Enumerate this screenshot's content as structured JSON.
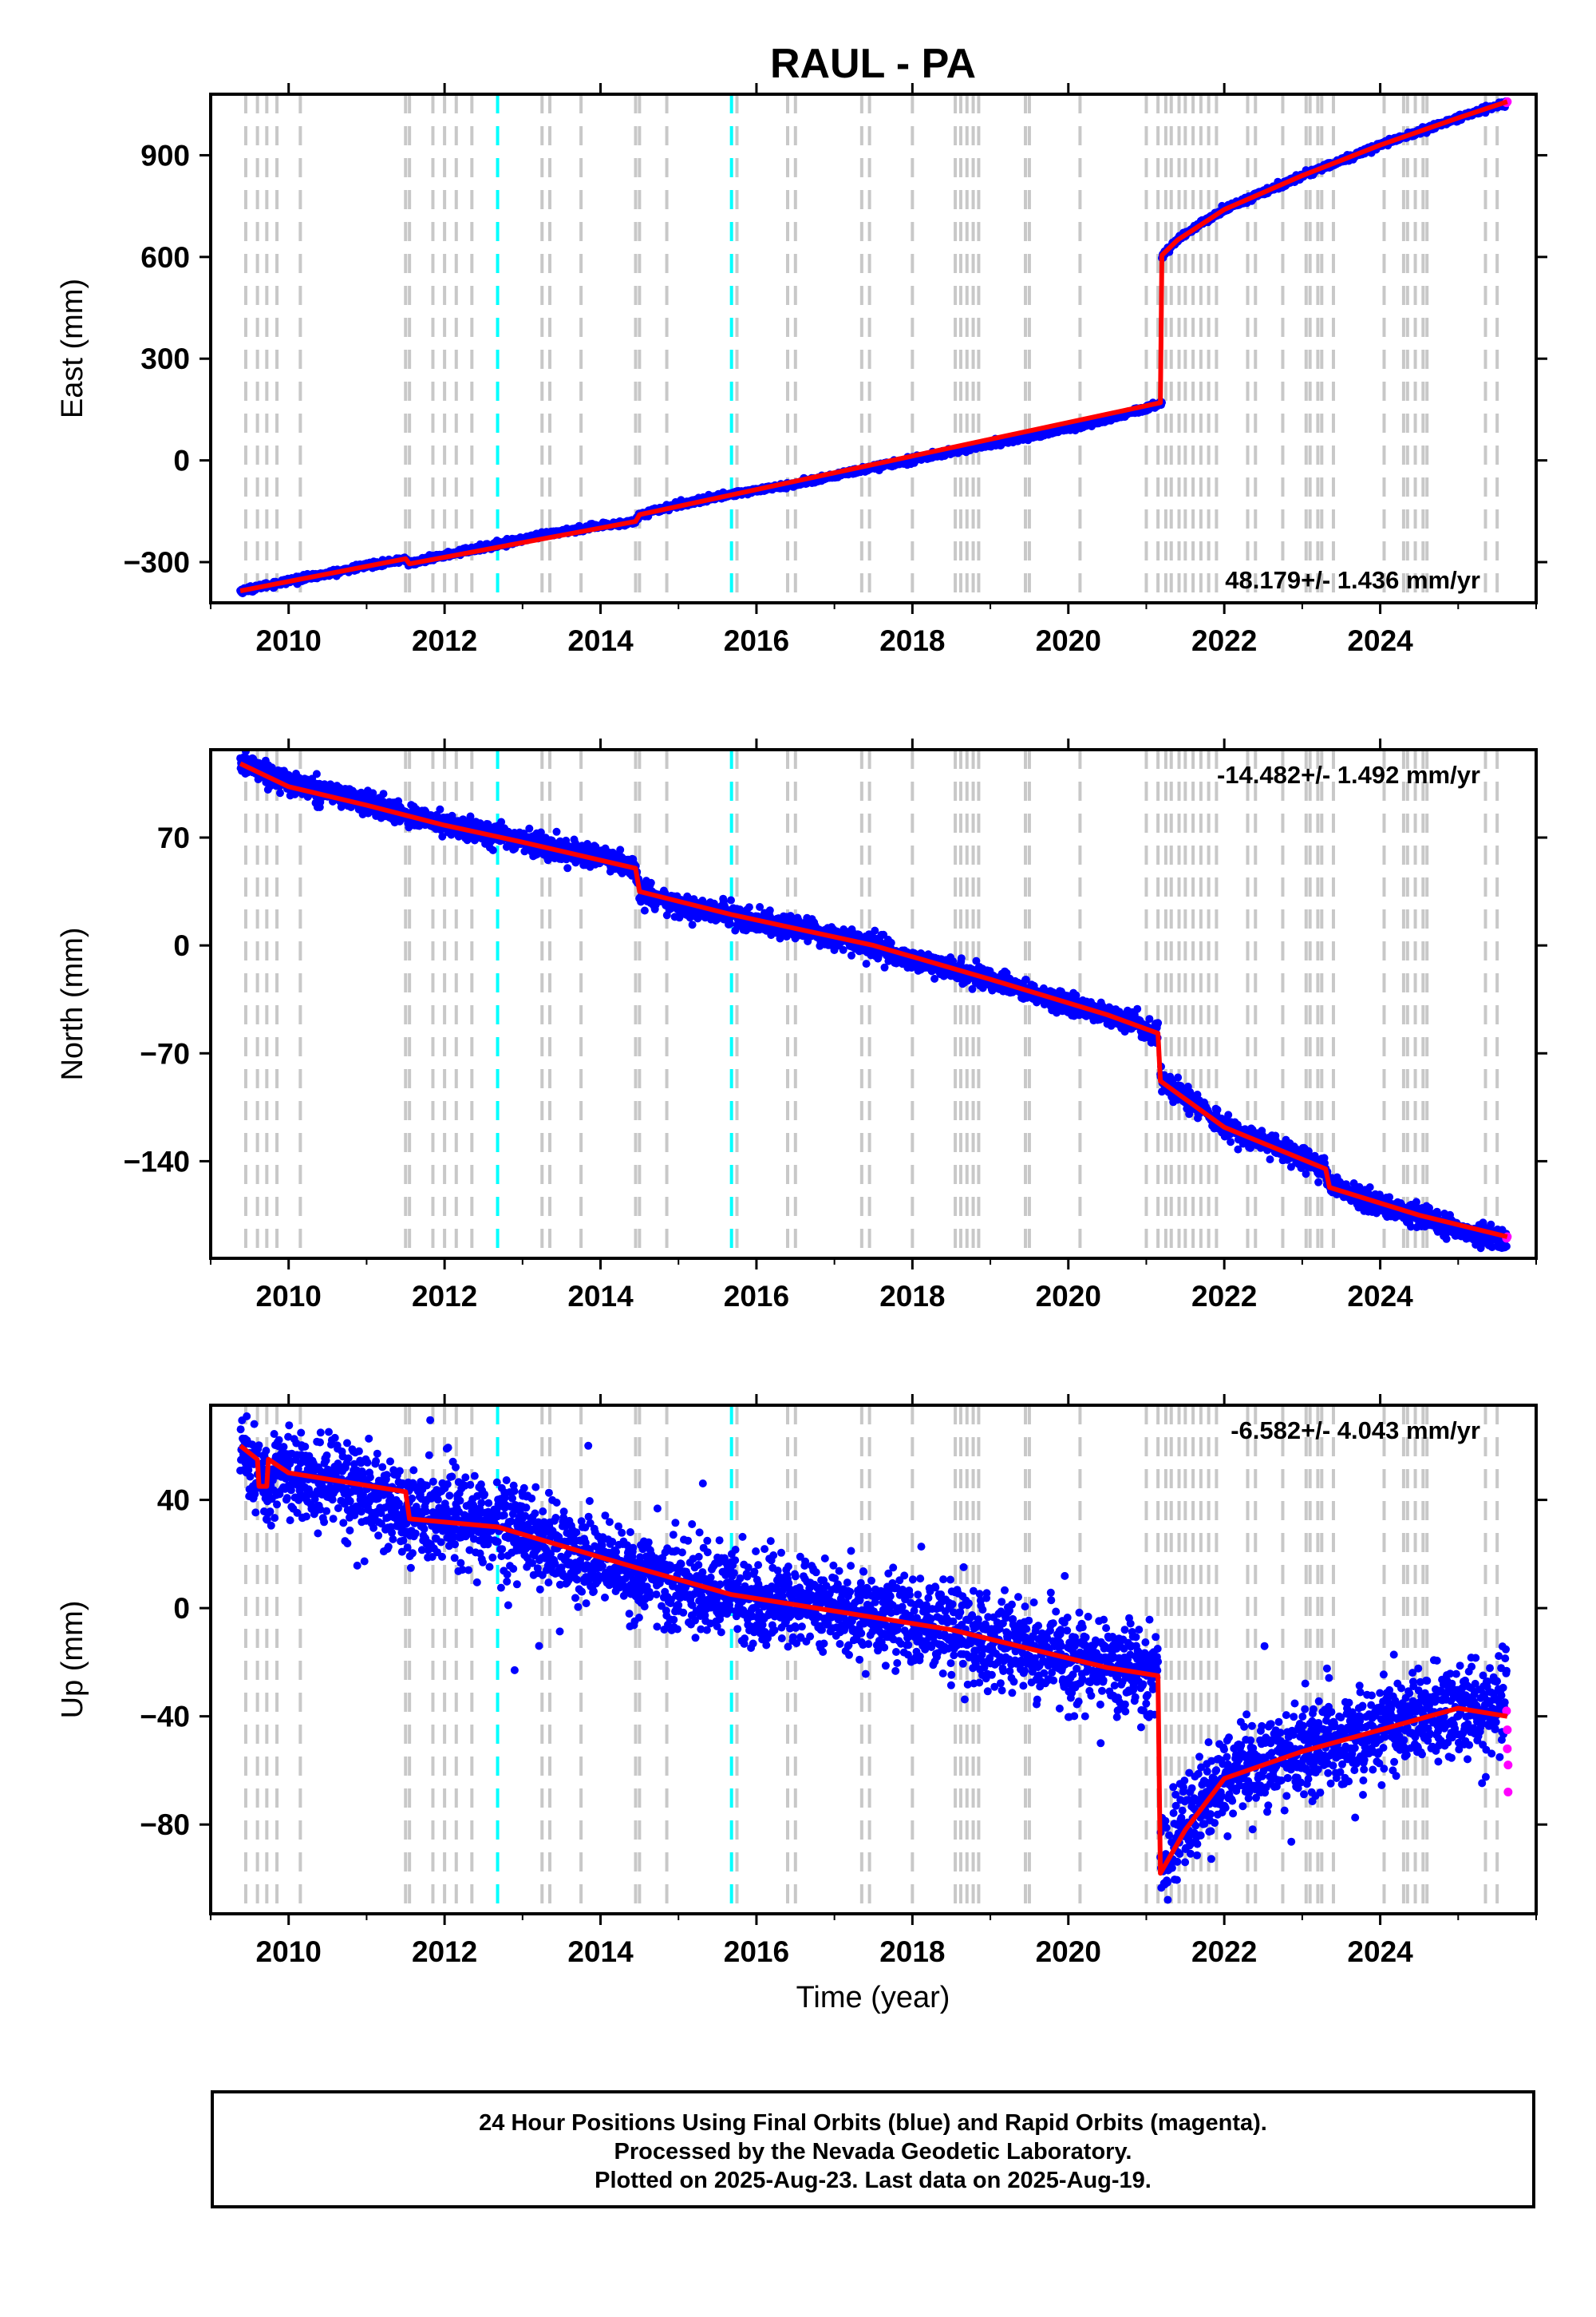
{
  "figure": {
    "title": "RAUL - PA",
    "footer": [
      "24 Hour Positions Using Final Orbits (blue) and Rapid Orbits (magenta).",
      "Processed by the Nevada Geodetic Laboratory.",
      "Plotted on 2025-Aug-23. Last data on 2025-Aug-19."
    ]
  },
  "colors": {
    "final_orbits": "#0000ff",
    "rapid_orbits": "#ff00ff",
    "model_fit": "#ff0000",
    "equipment_change": "#c8c8c8",
    "earthquake": "#00ffff"
  },
  "events": {
    "equipment_change_years": [
      2009.45,
      2009.6,
      2009.72,
      2009.85,
      2010.15,
      2011.5,
      2011.55,
      2011.85,
      2012.0,
      2012.15,
      2012.35,
      2013.25,
      2013.35,
      2013.75,
      2014.45,
      2014.5,
      2014.85,
      2015.75,
      2016.4,
      2016.5,
      2017.35,
      2017.45,
      2018.0,
      2018.55,
      2018.62,
      2018.7,
      2018.78,
      2018.85,
      2019.45,
      2019.5,
      2020.15,
      2021.0,
      2021.15,
      2021.25,
      2021.32,
      2021.42,
      2021.5,
      2021.6,
      2021.7,
      2021.8,
      2021.9,
      2022.3,
      2022.4,
      2022.75,
      2023.05,
      2023.1,
      2023.2,
      2023.25,
      2023.4,
      2024.05,
      2024.3,
      2024.35,
      2024.45,
      2024.55,
      2024.6,
      2025.35,
      2025.5
    ],
    "earthquake_years": [
      2012.68,
      2015.68
    ]
  },
  "chart_data": [
    {
      "type": "scatter",
      "ylabel": "East (mm)",
      "xlim": [
        2009.0,
        2026.0
      ],
      "ylim": [
        -420,
        1080
      ],
      "x_ticks": [
        2010,
        2012,
        2014,
        2016,
        2018,
        2020,
        2022,
        2024
      ],
      "y_ticks": [
        -300,
        0,
        300,
        600,
        900
      ],
      "y_tick_labels": [
        "−300",
        "0",
        "300",
        "600",
        "900"
      ],
      "rate_label": "48.179+/- 1.436 mm/yr",
      "rate_position": "bottom-right",
      "series": [
        {
          "role": "final",
          "x": [
            2009.38,
            2010.0,
            2010.5,
            2011.0,
            2011.5,
            2011.55,
            2012.0,
            2012.68,
            2013.5,
            2014.45,
            2014.5,
            2015.0,
            2015.68,
            2016.5,
            2017.5,
            2018.5,
            2019.5,
            2020.5,
            2021.2
          ],
          "y": [
            -385,
            -355,
            -335,
            -310,
            -292,
            -305,
            -280,
            -248,
            -210,
            -180,
            -160,
            -130,
            -100,
            -70,
            -20,
            25,
            70,
            120,
            170
          ]
        },
        {
          "role": "final",
          "x": [
            2021.2,
            2021.4,
            2021.7,
            2022.0,
            2022.5,
            2023.0,
            2023.4,
            2024.0,
            2024.5,
            2025.0,
            2025.62
          ],
          "y": [
            600,
            650,
            700,
            740,
            790,
            840,
            875,
            930,
            970,
            1010,
            1055
          ]
        },
        {
          "role": "rapid",
          "x": [
            2025.62,
            2025.63
          ],
          "y": [
            1055,
            1058
          ]
        }
      ],
      "model": {
        "x": [
          2009.38,
          2011.5,
          2011.55,
          2014.45,
          2014.5,
          2021.18,
          2021.2,
          2021.4,
          2022.0,
          2023.0,
          2024.0,
          2025.0,
          2025.63
        ],
        "y": [
          -385,
          -290,
          -305,
          -180,
          -160,
          170,
          605,
          650,
          740,
          840,
          930,
          1010,
          1058
        ]
      }
    },
    {
      "type": "scatter",
      "ylabel": "North (mm)",
      "xlim": [
        2009.0,
        2026.0
      ],
      "ylim": [
        -203,
        127
      ],
      "x_ticks": [
        2010,
        2012,
        2014,
        2016,
        2018,
        2020,
        2022,
        2024
      ],
      "y_ticks": [
        -140,
        -70,
        0,
        70
      ],
      "y_tick_labels": [
        "−140",
        "−70",
        "0",
        "70"
      ],
      "rate_label": "-14.482+/- 1.492 mm/yr",
      "rate_position": "top-right",
      "series": [
        {
          "role": "final",
          "x": [
            2009.38,
            2009.6,
            2010.0,
            2010.5,
            2011.0,
            2011.5,
            2012.0,
            2012.68,
            2013.0,
            2013.5,
            2014.0,
            2014.45,
            2014.5,
            2015.0,
            2015.68,
            2016.0,
            2016.5,
            2017.0,
            2017.5,
            2018.0,
            2018.7,
            2019.0,
            2019.5,
            2020.0,
            2020.5,
            2021.15
          ],
          "y": [
            118,
            115,
            105,
            100,
            92,
            85,
            78,
            72,
            68,
            62,
            57,
            50,
            35,
            25,
            20,
            15,
            12,
            5,
            0,
            -10,
            -18,
            -22,
            -30,
            -38,
            -45,
            -55
          ]
        },
        {
          "role": "final",
          "x": [
            2021.18,
            2021.5,
            2022.0,
            2022.5,
            2023.0,
            2023.3,
            2023.35,
            2024.0,
            2024.5,
            2025.0,
            2025.62
          ],
          "y": [
            -88,
            -98,
            -118,
            -128,
            -138,
            -145,
            -157,
            -168,
            -175,
            -185,
            -192
          ]
        },
        {
          "role": "rapid",
          "x": [
            2025.62,
            2025.63
          ],
          "y": [
            -190,
            -189
          ]
        }
      ],
      "model": {
        "x": [
          2009.38,
          2010.0,
          2011.0,
          2012.0,
          2013.0,
          2014.45,
          2014.5,
          2015.68,
          2017.5,
          2019.0,
          2020.5,
          2021.15,
          2021.18,
          2022.0,
          2023.3,
          2023.35,
          2024.5,
          2025.63
        ],
        "y": [
          118,
          103,
          91,
          78,
          67,
          50,
          35,
          20,
          0,
          -22,
          -45,
          -57,
          -88,
          -118,
          -145,
          -157,
          -175,
          -189
        ]
      }
    },
    {
      "type": "scatter",
      "ylabel": "Up (mm)",
      "xlabel": "Time (year)",
      "xlim": [
        2009.0,
        2026.0
      ],
      "ylim": [
        -113,
        75
      ],
      "x_ticks": [
        2010,
        2012,
        2014,
        2016,
        2018,
        2020,
        2022,
        2024
      ],
      "y_ticks": [
        -80,
        -40,
        0,
        40
      ],
      "y_tick_labels": [
        "−80",
        "−40",
        "0",
        "40"
      ],
      "rate_label": "-6.582+/- 4.043 mm/yr",
      "rate_position": "top-right",
      "series": [
        {
          "role": "final",
          "x": [
            2009.38,
            2009.6,
            2009.72,
            2010.0,
            2010.5,
            2011.0,
            2011.5,
            2012.0,
            2012.68,
            2013.5,
            2014.5,
            2015.68,
            2016.5,
            2017.5,
            2018.5,
            2019.5,
            2020.5,
            2021.15
          ],
          "y": [
            60,
            52,
            45,
            50,
            47,
            43,
            35,
            33,
            30,
            22,
            12,
            5,
            2,
            -3,
            -8,
            -15,
            -22,
            -25
          ]
        },
        {
          "role": "final",
          "x": [
            2021.18,
            2021.3,
            2021.5,
            2021.8,
            2022.0,
            2022.5,
            2023.0,
            2023.5,
            2024.0,
            2024.5,
            2025.0,
            2025.62
          ],
          "y": [
            -98,
            -90,
            -80,
            -70,
            -62,
            -58,
            -52,
            -48,
            -43,
            -40,
            -37,
            -35
          ]
        },
        {
          "role": "rapid",
          "x": [
            2025.62,
            2025.63,
            2025.63,
            2025.64,
            2025.64
          ],
          "y": [
            -38,
            -45,
            -52,
            -58,
            -68
          ]
        }
      ],
      "model": {
        "x": [
          2009.38,
          2009.6,
          2009.62,
          2009.72,
          2009.74,
          2010.0,
          2011.5,
          2011.55,
          2012.68,
          2014.45,
          2015.68,
          2018.5,
          2020.5,
          2021.15,
          2021.18,
          2021.5,
          2022.0,
          2023.0,
          2024.0,
          2025.0,
          2025.63
        ],
        "y": [
          60,
          55,
          45,
          45,
          55,
          50,
          43,
          33,
          30,
          15,
          5,
          -8,
          -22,
          -25,
          -98,
          -82,
          -63,
          -53,
          -45,
          -37,
          -40
        ]
      }
    }
  ]
}
